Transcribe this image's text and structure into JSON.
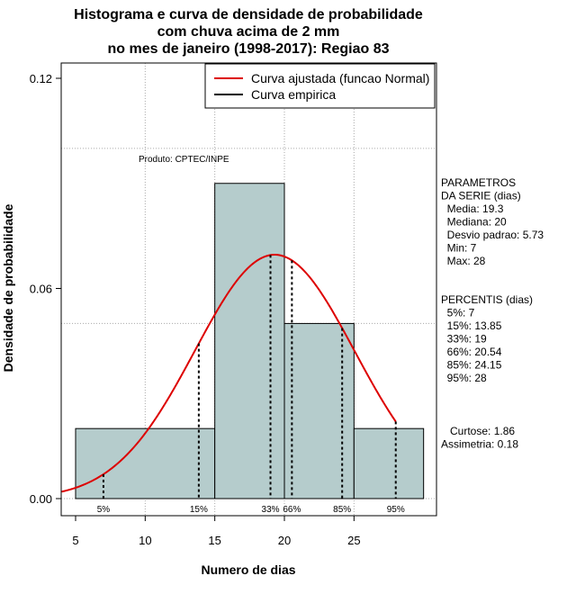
{
  "chart_data": {
    "type": "bar",
    "title": [
      "Histograma e curva de densidade de probabilidade",
      "com chuva acima de 2 mm",
      "no mes de janeiro (1998-2017): Regiao 83"
    ],
    "xlabel": "Numero de dias",
    "ylabel": "Densidade de probabilidade",
    "xlim": [
      4,
      30
    ],
    "ylim": [
      0,
      0.12
    ],
    "x_ticks": [
      5,
      10,
      15,
      20,
      25
    ],
    "y_ticks": [
      {
        "value": 0.0,
        "label": "0.00"
      },
      {
        "value": 0.06,
        "label": "0.06"
      },
      {
        "value": 0.12,
        "label": "0.12"
      }
    ],
    "grid_x": [
      10,
      15,
      20,
      25
    ],
    "grid_y": [
      0.0,
      0.05,
      0.1
    ],
    "bin_color": "#b5cccc",
    "bins": [
      {
        "start": 5,
        "end": 15,
        "density": 0.02
      },
      {
        "start": 15,
        "end": 20,
        "density": 0.09
      },
      {
        "start": 20,
        "end": 25,
        "density": 0.05
      },
      {
        "start": 25,
        "end": 30,
        "density": 0.02
      }
    ],
    "normal_curve": {
      "mean": 19.3,
      "sd": 5.73,
      "x_range": [
        4,
        28
      ],
      "color": "#dd0000"
    },
    "percentile_lines": [
      {
        "label": "5%",
        "value": 7
      },
      {
        "label": "15%",
        "value": 13.85
      },
      {
        "label": "33%",
        "value": 19
      },
      {
        "label": "66%",
        "value": 20.54
      },
      {
        "label": "85%",
        "value": 24.15
      },
      {
        "label": "95%",
        "value": 28
      }
    ],
    "legend": {
      "position": "top-right",
      "entries": [
        {
          "label": "Curva ajustada (funcao Normal)",
          "color": "#dd0000"
        },
        {
          "label": "Curva empirica",
          "color": "#000000"
        }
      ]
    },
    "annotation": {
      "text": "Produto: CPTEC/INPE",
      "x": 13,
      "y": 0.097
    }
  },
  "side_panel": {
    "parametros": [
      "PARAMETROS",
      "DA SERIE (dias)",
      "  Media: 19.3",
      "  Mediana: 20",
      "  Desvio padrao: 5.73",
      "  Min: 7",
      "  Max: 28"
    ],
    "percentis": [
      "PERCENTIS (dias)",
      "  5%: 7",
      "  15%: 13.85",
      "  33%: 19",
      "  66%: 20.54",
      "  85%: 24.15",
      "  95%: 28"
    ],
    "extra": [
      "   Curtose: 1.86",
      "Assimetria: 0.18"
    ]
  }
}
